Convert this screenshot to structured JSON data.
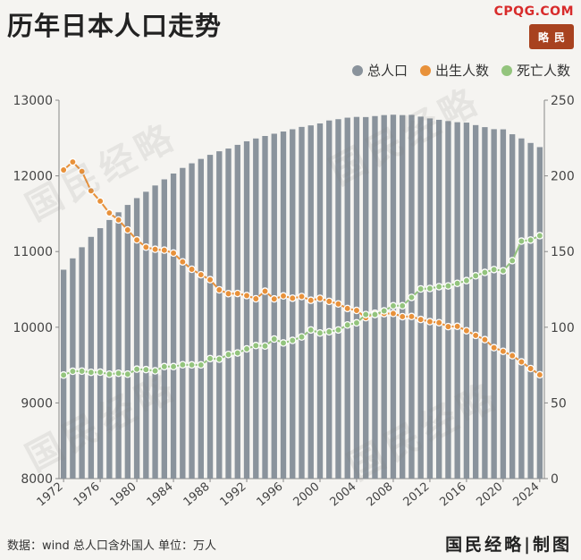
{
  "header": {
    "title": "历年日本人口走势",
    "brand": "CPQG.COM",
    "seal_text": "略民"
  },
  "legend": [
    {
      "label": "总人口",
      "color": "#8a939c"
    },
    {
      "label": "出生人数",
      "color": "#e8913a"
    },
    {
      "label": "死亡人数",
      "color": "#93c47d"
    }
  ],
  "footer": {
    "note": "数据：wind 总人口含外国人  单位：万人",
    "credit": "国民经略|制图"
  },
  "watermark_text": "国民经略",
  "chart_data": {
    "type": "bar",
    "title": "历年日本人口走势",
    "x": [
      1972,
      1973,
      1974,
      1975,
      1976,
      1977,
      1978,
      1979,
      1980,
      1981,
      1982,
      1983,
      1984,
      1985,
      1986,
      1987,
      1988,
      1989,
      1990,
      1991,
      1992,
      1993,
      1994,
      1995,
      1996,
      1997,
      1998,
      1999,
      2000,
      2001,
      2002,
      2003,
      2004,
      2005,
      2006,
      2007,
      2008,
      2009,
      2010,
      2011,
      2012,
      2013,
      2014,
      2015,
      2016,
      2017,
      2018,
      2019,
      2020,
      2021,
      2022,
      2023,
      2024
    ],
    "x_tick_labels": [
      "1972",
      "1976",
      "1980",
      "1984",
      "1988",
      "1992",
      "1996",
      "2000",
      "2004",
      "2008",
      "2012",
      "2016",
      "2020",
      "2024"
    ],
    "ylim_left": [
      8000,
      13000
    ],
    "yticks_left": [
      8000,
      9000,
      10000,
      11000,
      12000,
      13000
    ],
    "ylim_right": [
      0,
      250
    ],
    "yticks_right": [
      0,
      50,
      100,
      150,
      200,
      250
    ],
    "series": [
      {
        "name": "总人口",
        "type": "bar",
        "axis": "left",
        "color": "#8a939c",
        "values": [
          10760,
          10910,
          11057,
          11194,
          11309,
          11417,
          11519,
          11616,
          11706,
          11790,
          11873,
          11954,
          12031,
          12105,
          12166,
          12224,
          12278,
          12325,
          12361,
          12410,
          12457,
          12494,
          12527,
          12557,
          12586,
          12616,
          12647,
          12667,
          12693,
          12732,
          12749,
          12769,
          12779,
          12777,
          12790,
          12803,
          12808,
          12803,
          12806,
          12783,
          12759,
          12741,
          12724,
          12709,
          12704,
          12671,
          12644,
          12617,
          12615,
          12550,
          12495,
          12435,
          12380
        ]
      },
      {
        "name": "出生人数",
        "type": "line",
        "axis": "right",
        "color": "#e8913a",
        "values": [
          203.9,
          209.2,
          203.0,
          190.1,
          183.3,
          175.5,
          170.9,
          164.3,
          157.7,
          152.9,
          151.5,
          150.9,
          149.0,
          143.2,
          138.3,
          134.7,
          131.4,
          124.7,
          122.2,
          122.3,
          120.9,
          118.8,
          123.8,
          118.7,
          120.7,
          119.2,
          120.3,
          117.8,
          119.1,
          117.1,
          115.4,
          112.4,
          111.1,
          106.3,
          109.3,
          109.0,
          109.1,
          107.0,
          107.1,
          105.1,
          103.7,
          103.0,
          100.4,
          100.6,
          97.7,
          94.6,
          91.8,
          86.5,
          84.1,
          81.2,
          77.1,
          72.7,
          68.6
        ]
      },
      {
        "name": "死亡人数",
        "type": "line",
        "axis": "right",
        "color": "#93c47d",
        "values": [
          68.4,
          70.9,
          71.0,
          70.2,
          70.3,
          69.0,
          69.6,
          69.0,
          72.3,
          72.0,
          71.2,
          74.0,
          74.0,
          75.2,
          75.1,
          75.1,
          79.3,
          78.9,
          82.0,
          83.0,
          85.7,
          87.9,
          87.6,
          92.2,
          89.6,
          91.3,
          93.6,
          98.2,
          96.2,
          97.0,
          98.2,
          101.5,
          102.9,
          108.4,
          108.4,
          110.8,
          114.2,
          114.2,
          119.7,
          125.3,
          125.6,
          126.8,
          127.3,
          129.0,
          130.8,
          134.0,
          136.2,
          138.1,
          137.3,
          144.0,
          156.9,
          157.6,
          160.5
        ]
      }
    ]
  }
}
